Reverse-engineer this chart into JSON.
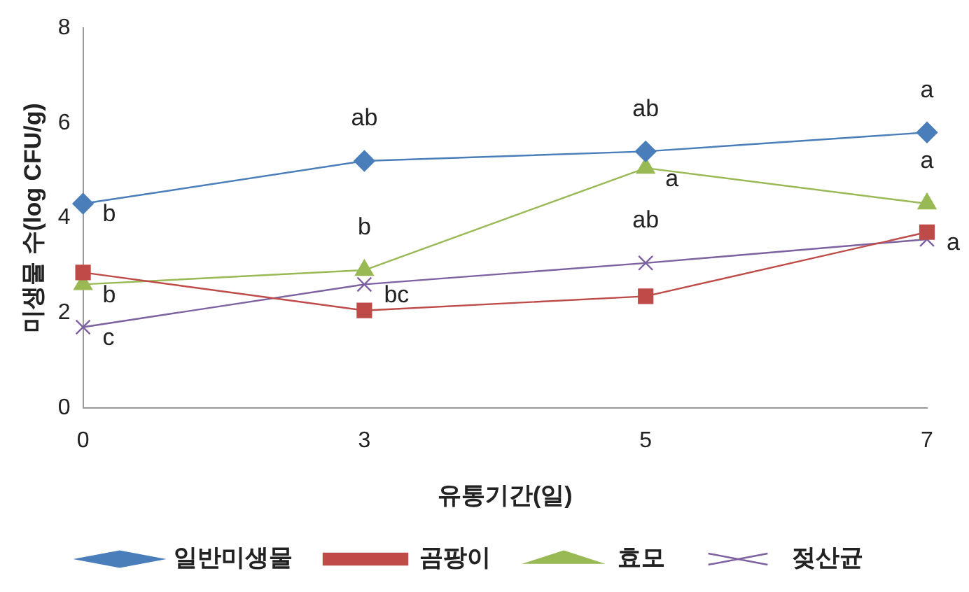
{
  "chart_data": {
    "type": "line",
    "xlabel": "유통기간(일)",
    "ylabel": "미생물 수(log CFU/g)",
    "categories": [
      "0",
      "3",
      "5",
      "7"
    ],
    "series": [
      {
        "name": "일반미생물",
        "color": "#4a7ebb",
        "marker": "diamond",
        "values": [
          4.3,
          5.2,
          5.4,
          5.8
        ]
      },
      {
        "name": "곰팡이",
        "color": "#be4b48",
        "marker": "square",
        "values": [
          2.85,
          2.05,
          2.35,
          3.7
        ]
      },
      {
        "name": "효모",
        "color": "#98b954",
        "marker": "triangle",
        "values": [
          2.6,
          2.9,
          5.05,
          4.3
        ]
      },
      {
        "name": "젖산균",
        "color": "#7d60a0",
        "marker": "cross",
        "values": [
          1.7,
          2.6,
          3.05,
          3.55
        ]
      }
    ],
    "ylim": [
      0,
      8
    ],
    "yticks": [
      0,
      2,
      4,
      6,
      8
    ],
    "grid": false,
    "legend": "bottom",
    "line_style": "solid",
    "annotations": [
      {
        "text": "b",
        "x": "0",
        "y": 4.3
      },
      {
        "text": "b",
        "x": "0",
        "y": 2.6
      },
      {
        "text": "c",
        "x": "0",
        "y": 1.7
      },
      {
        "text": "ab",
        "x": "3",
        "y": 5.2
      },
      {
        "text": "b",
        "x": "3",
        "y": 2.9
      },
      {
        "text": "bc",
        "x": "3",
        "y": 2.6
      },
      {
        "text": "ab",
        "x": "5",
        "y": 5.4
      },
      {
        "text": "a",
        "x": "5",
        "y": 5.05
      },
      {
        "text": "ab",
        "x": "5",
        "y": 3.05
      },
      {
        "text": "a",
        "x": "7",
        "y": 5.8
      },
      {
        "text": "a",
        "x": "7",
        "y": 4.3
      },
      {
        "text": "a",
        "x": "7",
        "y": 3.7
      }
    ]
  }
}
